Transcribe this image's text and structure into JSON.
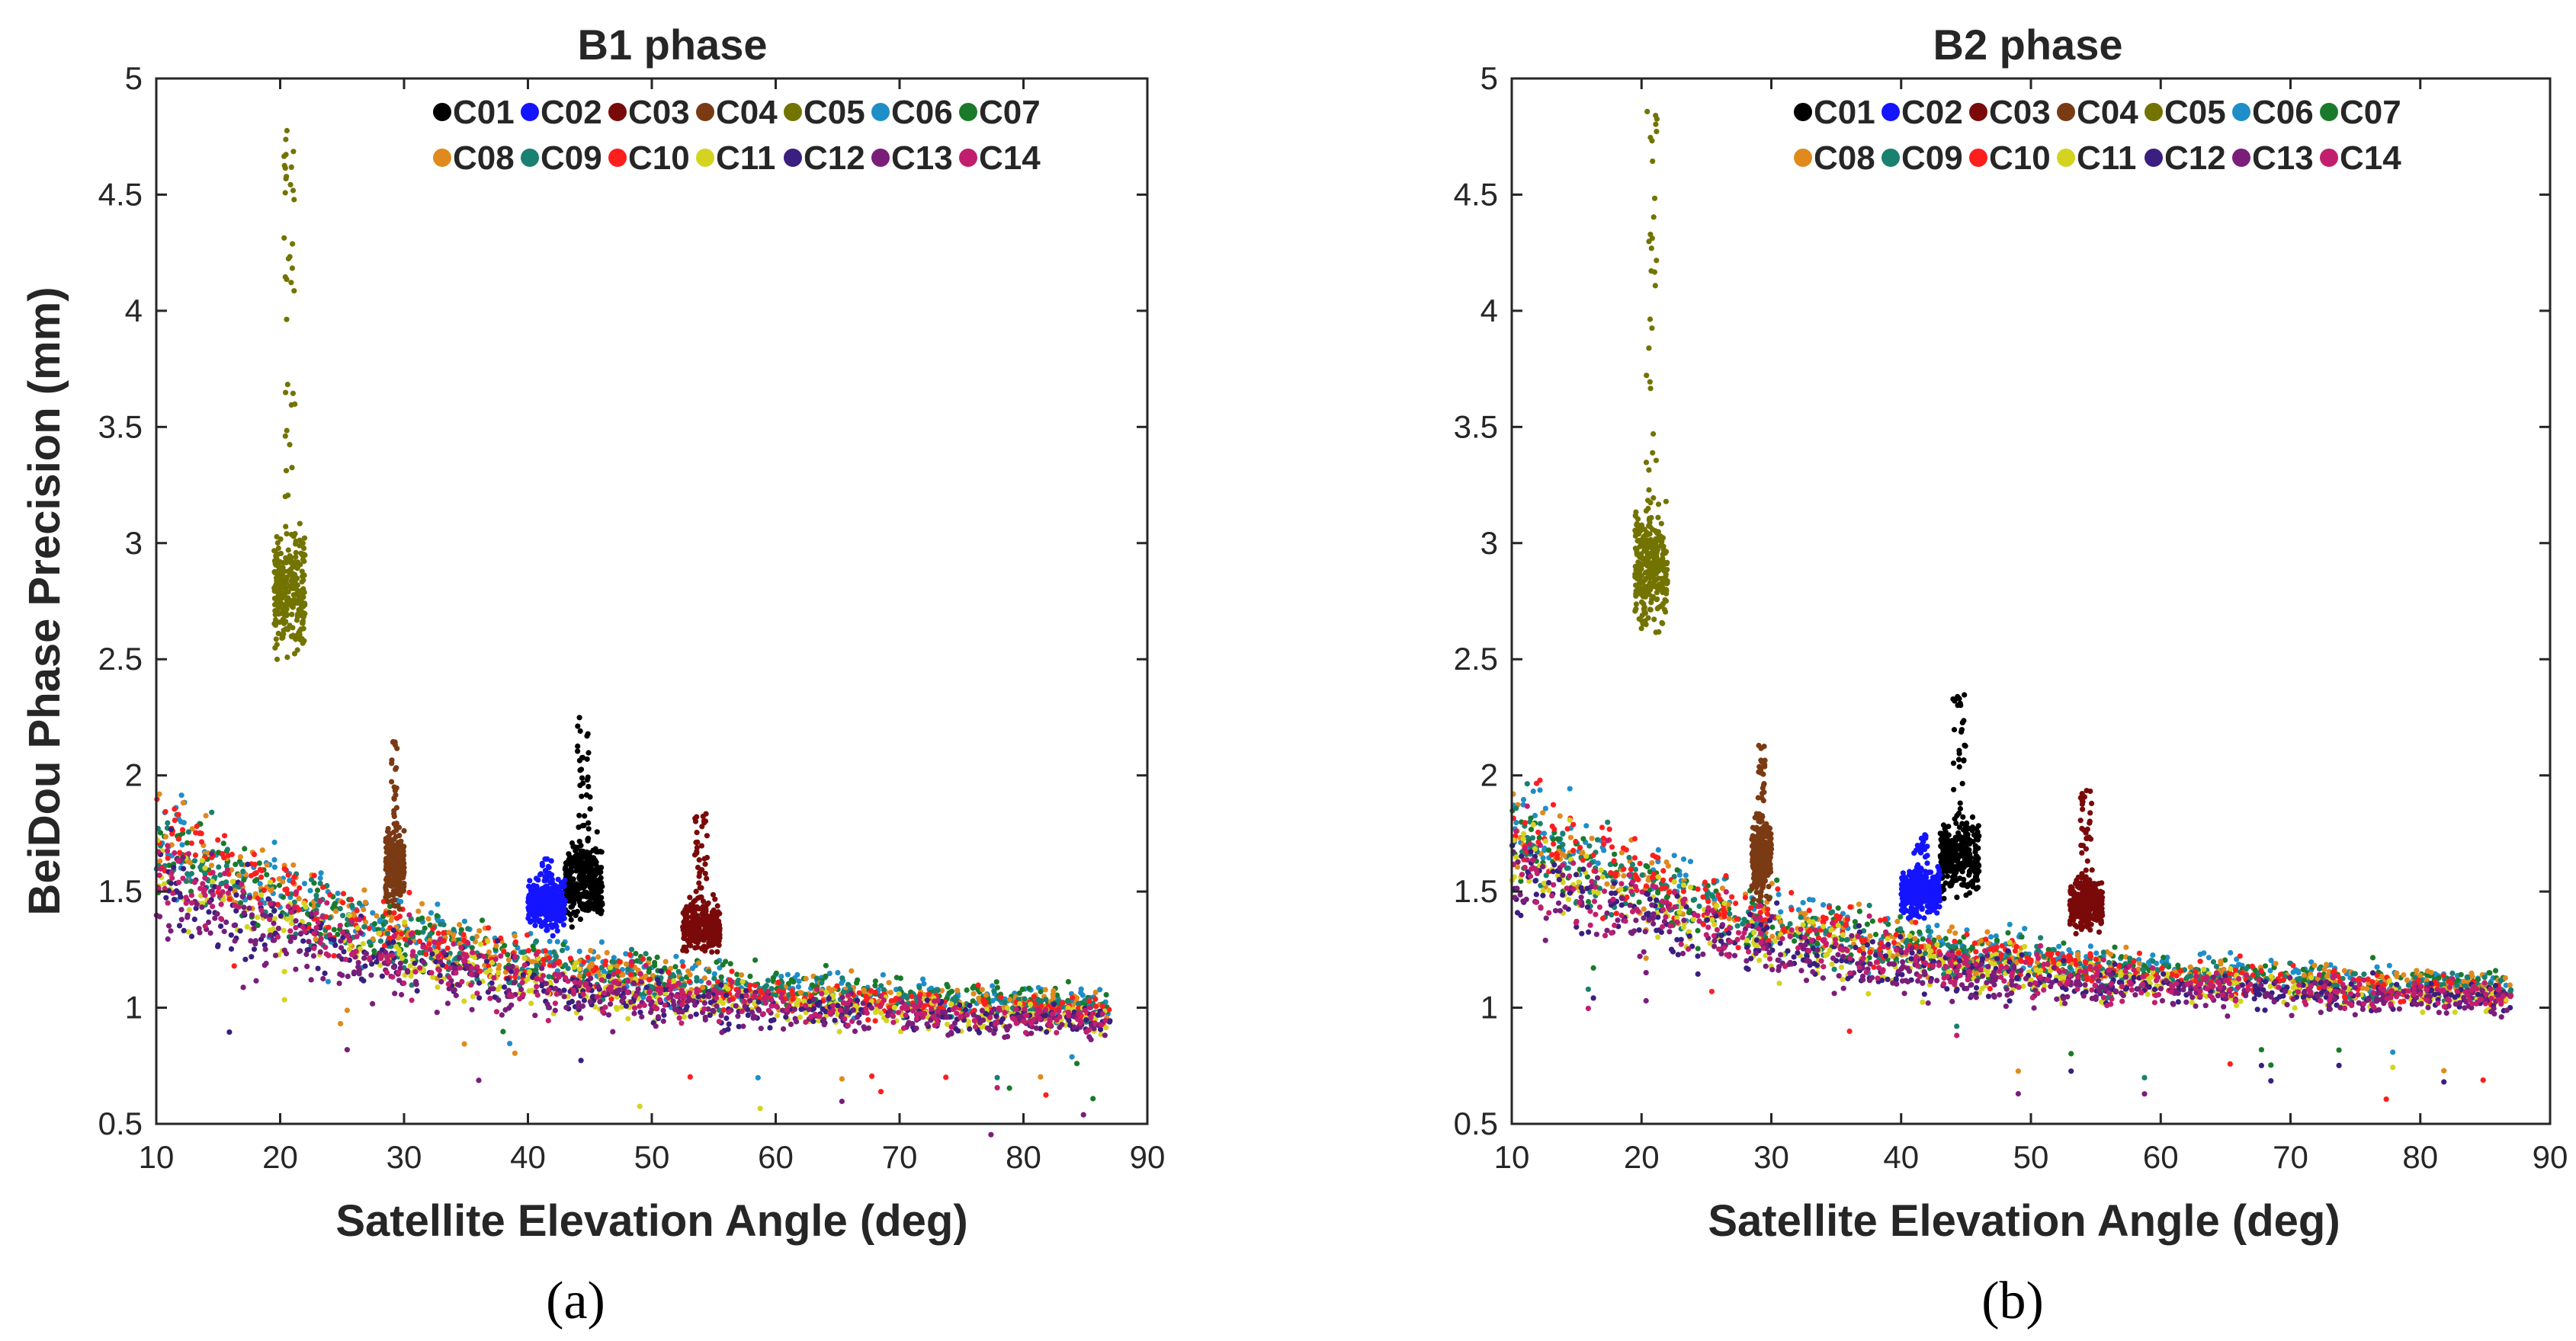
{
  "figure": {
    "y_axis_label": "BeiDou Phase Precision (mm)"
  },
  "legend_labels": [
    "C01",
    "C02",
    "C03",
    "C04",
    "C05",
    "C06",
    "C07",
    "C08",
    "C09",
    "C10",
    "C11",
    "C12",
    "C13",
    "C14"
  ],
  "legend_colors": [
    "#000000",
    "#1414ff",
    "#7a0a0a",
    "#7a3a14",
    "#737300",
    "#1e8ec9",
    "#1a7a2a",
    "#e08a1e",
    "#1a8070",
    "#ff1e1e",
    "#d4d420",
    "#3a1e80",
    "#7a1e7a",
    "#c21e6e"
  ],
  "chart_data": [
    {
      "type": "scatter",
      "title": "B1 phase",
      "caption": "(a)",
      "xlabel": "Satellite Elevation Angle (deg)",
      "ylabel": "BeiDou Phase Precision (mm)",
      "xlim": [
        10,
        90
      ],
      "ylim": [
        0.5,
        5
      ],
      "xticks": [
        "10",
        "20",
        "30",
        "40",
        "50",
        "60",
        "70",
        "80",
        "90"
      ],
      "yticks": [
        "0.5",
        "1",
        "1.5",
        "2",
        "2.5",
        "3",
        "3.5",
        "4",
        "4.5",
        "5"
      ],
      "legend_position": "top-right",
      "series": [
        {
          "name": "C01",
          "x_range": [
            43,
            46
          ],
          "y_center": 1.55,
          "y_spread": 0.15,
          "y_max": 2.25
        },
        {
          "name": "C02",
          "x_range": [
            40,
            43
          ],
          "y_center": 1.45,
          "y_spread": 0.1,
          "y_max": 1.65
        },
        {
          "name": "C03",
          "x_range": [
            52.5,
            55.5
          ],
          "y_center": 1.35,
          "y_spread": 0.1,
          "y_max": 1.85
        },
        {
          "name": "C04",
          "x_range": [
            28.5,
            30
          ],
          "y_center": 1.6,
          "y_spread": 0.15,
          "y_max": 2.15
        },
        {
          "name": "C05",
          "x_range": [
            19.5,
            22
          ],
          "y_center": 2.8,
          "y_spread": 0.25,
          "y_max": 4.8
        },
        {
          "name": "C06",
          "x_range": [
            10,
            87
          ],
          "y_start": 1.75,
          "y_end": 1.0
        },
        {
          "name": "C07",
          "x_range": [
            10,
            87
          ],
          "y_start": 1.7,
          "y_end": 1.0
        },
        {
          "name": "C08",
          "x_range": [
            10,
            87
          ],
          "y_start": 1.75,
          "y_end": 0.98
        },
        {
          "name": "C09",
          "x_range": [
            10,
            87
          ],
          "y_start": 1.7,
          "y_end": 0.97
        },
        {
          "name": "C10",
          "x_range": [
            10,
            87
          ],
          "y_start": 1.8,
          "y_end": 0.95
        },
        {
          "name": "C11",
          "x_range": [
            10,
            87
          ],
          "y_start": 1.6,
          "y_end": 0.92
        },
        {
          "name": "C12",
          "x_range": [
            10,
            87
          ],
          "y_start": 1.55,
          "y_end": 0.92
        },
        {
          "name": "C13",
          "x_range": [
            10,
            87
          ],
          "y_start": 1.5,
          "y_end": 0.9
        },
        {
          "name": "C14",
          "x_range": [
            10,
            87
          ],
          "y_start": 1.6,
          "y_end": 0.93
        }
      ]
    },
    {
      "type": "scatter",
      "title": "B2 phase",
      "caption": "(b)",
      "xlabel": "Satellite Elevation Angle (deg)",
      "ylabel": "",
      "xlim": [
        10,
        90
      ],
      "ylim": [
        0.5,
        5
      ],
      "xticks": [
        "10",
        "20",
        "30",
        "40",
        "50",
        "60",
        "70",
        "80",
        "90"
      ],
      "yticks": [
        "0.5",
        "1",
        "1.5",
        "2",
        "2.5",
        "3",
        "3.5",
        "4",
        "4.5",
        "5"
      ],
      "legend_position": "top-right",
      "series": [
        {
          "name": "C01",
          "x_range": [
            43,
            46
          ],
          "y_center": 1.65,
          "y_spread": 0.15,
          "y_max": 2.35
        },
        {
          "name": "C02",
          "x_range": [
            40,
            43
          ],
          "y_center": 1.5,
          "y_spread": 0.1,
          "y_max": 1.75
        },
        {
          "name": "C03",
          "x_range": [
            53,
            55.5
          ],
          "y_center": 1.45,
          "y_spread": 0.1,
          "y_max": 1.95
        },
        {
          "name": "C04",
          "x_range": [
            28.5,
            30
          ],
          "y_center": 1.65,
          "y_spread": 0.15,
          "y_max": 2.15
        },
        {
          "name": "C05",
          "x_range": [
            19.5,
            22
          ],
          "y_center": 2.9,
          "y_spread": 0.25,
          "y_max": 4.9
        },
        {
          "name": "C06",
          "x_range": [
            10,
            87
          ],
          "y_start": 1.8,
          "y_end": 1.08
        },
        {
          "name": "C07",
          "x_range": [
            10,
            87
          ],
          "y_start": 1.75,
          "y_end": 1.08
        },
        {
          "name": "C08",
          "x_range": [
            10,
            87
          ],
          "y_start": 1.8,
          "y_end": 1.06
        },
        {
          "name": "C09",
          "x_range": [
            10,
            87
          ],
          "y_start": 1.75,
          "y_end": 1.05
        },
        {
          "name": "C10",
          "x_range": [
            10,
            87
          ],
          "y_start": 1.85,
          "y_end": 1.04
        },
        {
          "name": "C11",
          "x_range": [
            10,
            87
          ],
          "y_start": 1.65,
          "y_end": 1.02
        },
        {
          "name": "C12",
          "x_range": [
            10,
            87
          ],
          "y_start": 1.6,
          "y_end": 1.02
        },
        {
          "name": "C13",
          "x_range": [
            10,
            87
          ],
          "y_start": 1.55,
          "y_end": 1.0
        },
        {
          "name": "C14",
          "x_range": [
            10,
            87
          ],
          "y_start": 1.65,
          "y_end": 1.03
        }
      ]
    }
  ]
}
